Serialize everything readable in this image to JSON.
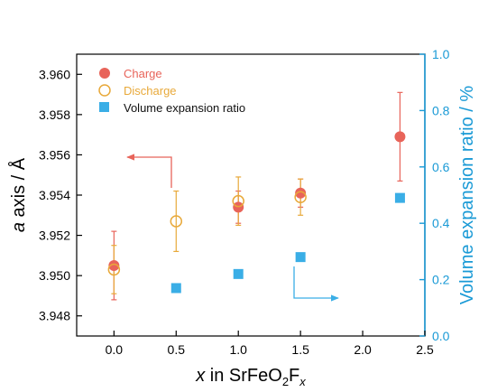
{
  "chart_data": {
    "type": "scatter",
    "colors": {
      "charge": "#e8645a",
      "discharge": "#e8a93a",
      "volume": "#3aaee6",
      "left_axis": "#000000",
      "right_axis": "#1a9ad6"
    },
    "xlabel": {
      "italic": "x",
      "pre": " in SrFeO",
      "sub1": "2",
      "mid": "F",
      "sub2": "x"
    },
    "ylabel_left": {
      "italic": "a",
      "rest": " axis / Å"
    },
    "ylabel_right": "Volume expansion ratio / %",
    "xlim": [
      -0.3,
      2.5
    ],
    "ylim_left": [
      3.947,
      3.961
    ],
    "ylim_right": [
      0.0,
      1.0
    ],
    "x_ticks": [
      "0.0",
      "0.5",
      "1.0",
      "1.5",
      "2.0",
      "2.5"
    ],
    "y_left_ticks": [
      "3.948",
      "3.950",
      "3.952",
      "3.954",
      "3.956",
      "3.958",
      "3.960"
    ],
    "y_right_ticks": [
      "0.0",
      "0.2",
      "0.4",
      "0.6",
      "0.8",
      "1.0"
    ],
    "series": [
      {
        "name": "Charge",
        "axis": "left",
        "marker": "filled-circle",
        "points": [
          {
            "x": 0.0,
            "y": 3.9505,
            "err": 0.0017
          },
          {
            "x": 1.0,
            "y": 3.9534,
            "err": 0.0008
          },
          {
            "x": 1.5,
            "y": 3.9541,
            "err": 0.0007
          },
          {
            "x": 2.3,
            "y": 3.9569,
            "err": 0.0022
          }
        ]
      },
      {
        "name": "Discharge",
        "axis": "left",
        "marker": "open-circle",
        "points": [
          {
            "x": 0.0,
            "y": 3.9503,
            "err": 0.0012
          },
          {
            "x": 0.5,
            "y": 3.9527,
            "err": 0.0015
          },
          {
            "x": 1.0,
            "y": 3.9537,
            "err": 0.0012
          },
          {
            "x": 1.5,
            "y": 3.9539,
            "err": 0.0009
          }
        ]
      },
      {
        "name": "Volume expansion ratio",
        "axis": "right",
        "marker": "square",
        "points": [
          {
            "x": 0.5,
            "y": 0.17
          },
          {
            "x": 1.0,
            "y": 0.22
          },
          {
            "x": 1.5,
            "y": 0.28
          },
          {
            "x": 2.3,
            "y": 0.49
          }
        ]
      }
    ],
    "legend_position": "top-left",
    "grid": false
  }
}
